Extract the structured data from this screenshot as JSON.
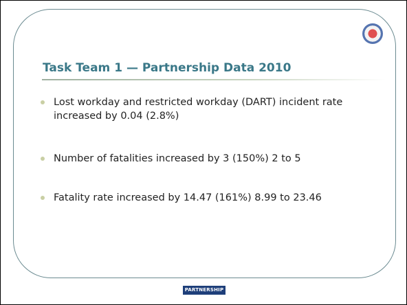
{
  "slide": {
    "title": "Task Team 1 — Partnership Data 2010",
    "bullets": [
      "Lost workday and restricted workday (DART) incident rate increased by 0.04 (2.8%)",
      "Number of fatalities increased by 3 (150%) 2 to 5",
      "Fatality rate increased by 14.47 (161%) 8.99 to 23.46"
    ],
    "footer_logo": "PARTNERSHIP"
  }
}
